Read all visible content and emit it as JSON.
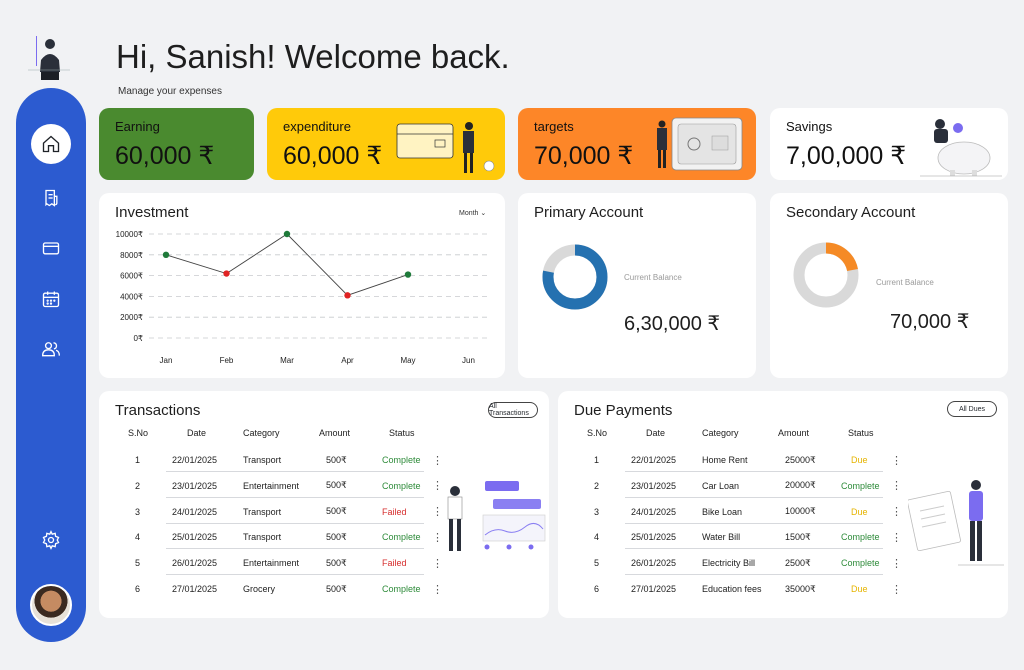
{
  "header": {
    "greeting": "Hi, Sanish! Welcome back.",
    "subtitle": "Manage your expenses"
  },
  "sidebar": {
    "items": [
      {
        "icon": "home-icon"
      },
      {
        "icon": "receipt-icon"
      },
      {
        "icon": "card-icon"
      },
      {
        "icon": "calendar-icon"
      },
      {
        "icon": "users-icon"
      },
      {
        "icon": "gear-icon"
      }
    ]
  },
  "stats": [
    {
      "label": "Earning",
      "value": "60,000 ₹",
      "color": "#4a8a2f"
    },
    {
      "label": "expenditure",
      "value": "60,000 ₹",
      "color": "#ffca0a"
    },
    {
      "label": "targets",
      "value": "70,000 ₹",
      "color": "#fd8628"
    },
    {
      "label": "Savings",
      "value": "7,00,000 ₹",
      "color": "#ffffff"
    }
  ],
  "investment": {
    "title": "Investment",
    "period": "Month",
    "chart_data": {
      "type": "line",
      "categories": [
        "Jan",
        "Feb",
        "Mar",
        "Apr",
        "May",
        "Jun"
      ],
      "values": [
        8000,
        6200,
        10000,
        4100,
        6100,
        null
      ],
      "point_colors": [
        "#1f7a3a",
        "#e02424",
        "#1f7a3a",
        "#e02424",
        "#1f7a3a"
      ],
      "yticks": [
        "10000₹",
        "8000₹",
        "6000₹",
        "4000₹",
        "2000₹",
        "0₹"
      ],
      "ylim": [
        0,
        10000
      ],
      "grid": true
    }
  },
  "primary": {
    "title": "Primary Account",
    "balance_label": "Current Balance",
    "balance": "6,30,000 ₹",
    "fill_fraction": 0.78,
    "color": "#2571b0"
  },
  "secondary": {
    "title": "Secondary Account",
    "balance_label": "Current Balance",
    "balance": "70,000 ₹",
    "fill_fraction": 0.22,
    "color": "#f58a25"
  },
  "transactions": {
    "title": "Transactions",
    "button": "All Transactions",
    "headers": [
      "S.No",
      "Date",
      "Category",
      "Amount",
      "Status"
    ],
    "rows": [
      {
        "no": "1",
        "date": "22/01/2025",
        "category": "Transport",
        "amount": "500₹",
        "status": "Complete"
      },
      {
        "no": "2",
        "date": "23/01/2025",
        "category": "Entertainment",
        "amount": "500₹",
        "status": "Complete"
      },
      {
        "no": "3",
        "date": "24/01/2025",
        "category": "Transport",
        "amount": "500₹",
        "status": "Failed"
      },
      {
        "no": "4",
        "date": "25/01/2025",
        "category": "Transport",
        "amount": "500₹",
        "status": "Complete"
      },
      {
        "no": "5",
        "date": "26/01/2025",
        "category": "Entertainment",
        "amount": "500₹",
        "status": "Failed"
      },
      {
        "no": "6",
        "date": "27/01/2025",
        "category": "Grocery",
        "amount": "500₹",
        "status": "Complete"
      }
    ]
  },
  "due": {
    "title": "Due Payments",
    "button": "All Dues",
    "headers": [
      "S.No",
      "Date",
      "Category",
      "Amount",
      "Status"
    ],
    "rows": [
      {
        "no": "1",
        "date": "22/01/2025",
        "category": "Home Rent",
        "amount": "25000₹",
        "status": "Due"
      },
      {
        "no": "2",
        "date": "23/01/2025",
        "category": "Car Loan",
        "amount": "20000₹",
        "status": "Complete"
      },
      {
        "no": "3",
        "date": "24/01/2025",
        "category": "Bike Loan",
        "amount": "10000₹",
        "status": "Due"
      },
      {
        "no": "4",
        "date": "25/01/2025",
        "category": "Water Bill",
        "amount": "1500₹",
        "status": "Complete"
      },
      {
        "no": "5",
        "date": "26/01/2025",
        "category": "Electricity Bill",
        "amount": "2500₹",
        "status": "Complete"
      },
      {
        "no": "6",
        "date": "27/01/2025",
        "category": "Education fees",
        "amount": "35000₹",
        "status": "Due"
      }
    ]
  }
}
